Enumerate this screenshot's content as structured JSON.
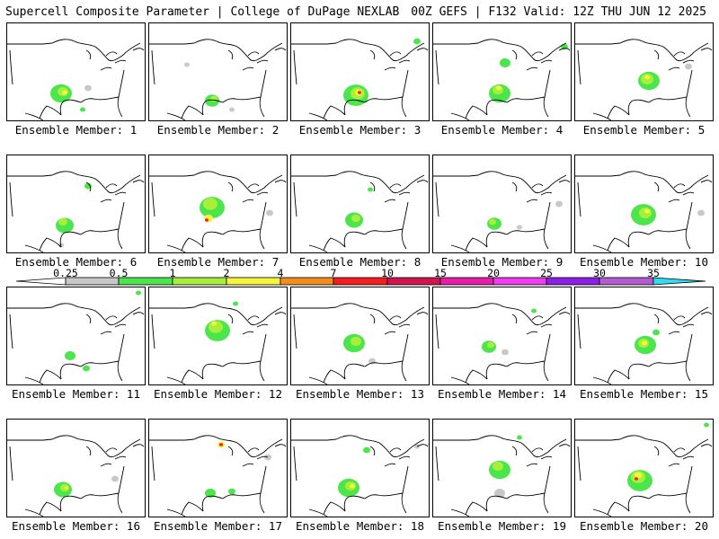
{
  "header": {
    "left": "Supercell Composite Parameter | College of DuPage NEXLAB",
    "right": "00Z GEFS | F132 Valid: 12Z THU JUN 12 2025"
  },
  "colorbar": {
    "ticks": [
      "0.25",
      "0.5",
      "1",
      "2",
      "4",
      "7",
      "10",
      "15",
      "20",
      "25",
      "30",
      "35"
    ],
    "colors": [
      "#c8c8c8",
      "#4ce64c",
      "#a6f03c",
      "#f5f53c",
      "#f58c1e",
      "#f51e1e",
      "#d21450",
      "#e61eaa",
      "#f03cf0",
      "#8c1ee6",
      "#b45ad2",
      "#32dcf0"
    ]
  },
  "panels": [
    {
      "label": "Ensemble Member: 1"
    },
    {
      "label": "Ensemble Member: 2"
    },
    {
      "label": "Ensemble Member: 3"
    },
    {
      "label": "Ensemble Member: 4"
    },
    {
      "label": "Ensemble Member: 5"
    },
    {
      "label": "Ensemble Member: 6"
    },
    {
      "label": "Ensemble Member: 7"
    },
    {
      "label": "Ensemble Member: 8"
    },
    {
      "label": "Ensemble Member: 9"
    },
    {
      "label": "Ensemble Member: 10"
    },
    {
      "label": "Ensemble Member: 11"
    },
    {
      "label": "Ensemble Member: 12"
    },
    {
      "label": "Ensemble Member: 13"
    },
    {
      "label": "Ensemble Member: 14"
    },
    {
      "label": "Ensemble Member: 15"
    },
    {
      "label": "Ensemble Member: 16"
    },
    {
      "label": "Ensemble Member: 17"
    },
    {
      "label": "Ensemble Member: 18"
    },
    {
      "label": "Ensemble Member: 19"
    },
    {
      "label": "Ensemble Member: 20"
    }
  ]
}
